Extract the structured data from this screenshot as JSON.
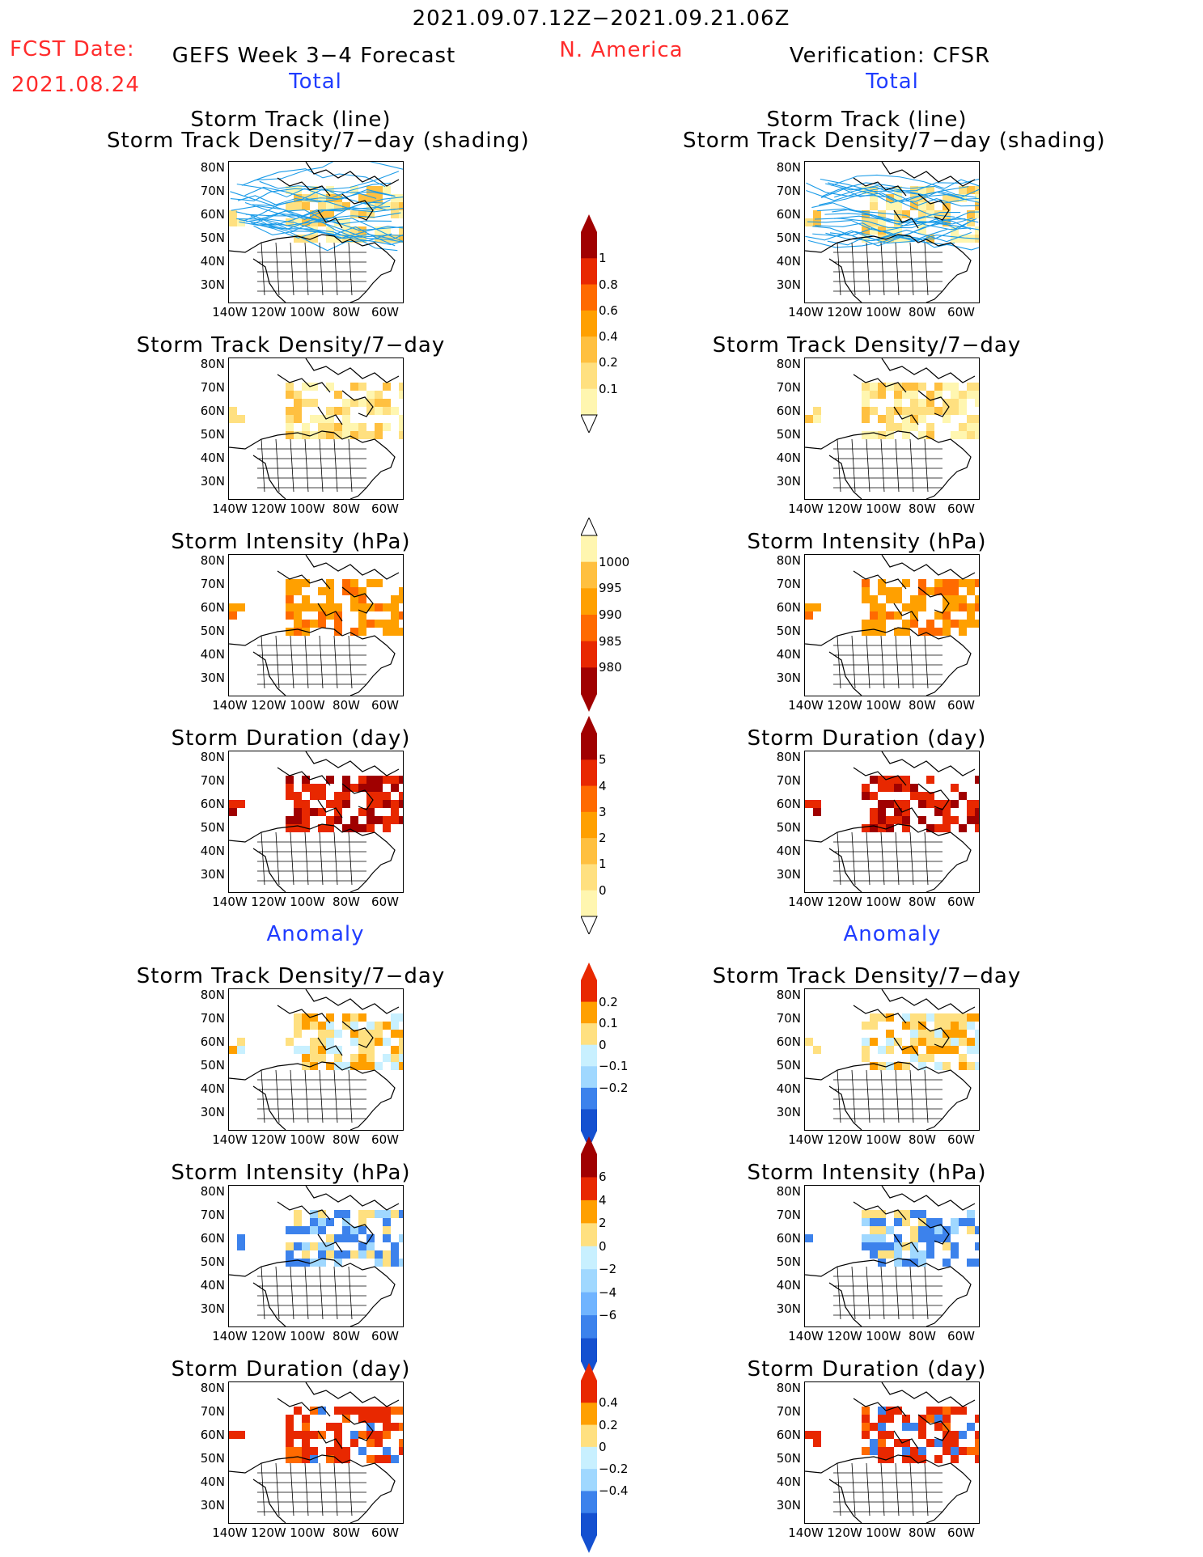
{
  "header": {
    "date_range": "2021.09.07.12Z−2021.09.21.06Z",
    "fcst_date_label": "FCST Date:",
    "fcst_date_value": "2021.08.24",
    "forecast_title": "GEFS Week 3−4 Forecast",
    "region": "N. America",
    "verification_title": "Verification: CFSR"
  },
  "sections": {
    "total_left": "Total",
    "total_right": "Total",
    "anomaly_left": "Anomaly",
    "anomaly_right": "Anomaly"
  },
  "panel_titles": {
    "track_line": "Storm Track (line)",
    "track_shading": "Storm Track Density/7−day (shading)",
    "density": "Storm Track Density/7−day",
    "intensity": "Storm Intensity (hPa)",
    "duration": "Storm Duration (day)"
  },
  "axes": {
    "lat_labels": [
      "80N",
      "70N",
      "60N",
      "50N",
      "40N",
      "30N"
    ],
    "lon_labels": [
      "140W",
      "120W",
      "100W",
      "80W",
      "60W"
    ]
  },
  "colorbars": {
    "density_total": [
      "1",
      "0.8",
      "0.6",
      "0.4",
      "0.2",
      "0.1"
    ],
    "intensity_total": [
      "1000",
      "995",
      "990",
      "985",
      "980"
    ],
    "duration_total": [
      "5",
      "4",
      "3",
      "2",
      "1",
      "0"
    ],
    "density_anom": [
      "0.2",
      "0.1",
      "0",
      "−0.1",
      "−0.2"
    ],
    "intensity_anom": [
      "6",
      "4",
      "2",
      "0",
      "−2",
      "−4",
      "−6"
    ],
    "duration_anom": [
      "0.4",
      "0.2",
      "0",
      "−0.2",
      "−0.4"
    ]
  },
  "colors": {
    "red_text": "#ff2b2b",
    "blue_text": "#1f3cff",
    "track_line": "#1a9be8",
    "warm_scale": [
      "#fff6b0",
      "#ffe080",
      "#ffc040",
      "#ffa000",
      "#ff6a00",
      "#e82800",
      "#a00000"
    ],
    "cool_scale": [
      "#c8f0ff",
      "#a0d8ff",
      "#70b4ff",
      "#3c82ec",
      "#1450d0"
    ]
  }
}
